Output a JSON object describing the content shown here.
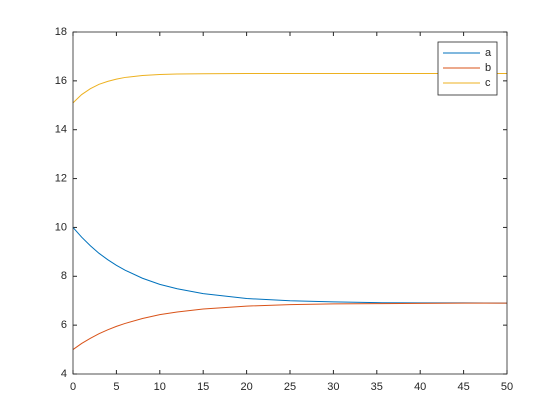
{
  "chart_data": {
    "type": "line",
    "x": [
      0,
      1,
      2,
      3,
      4,
      5,
      6,
      8,
      10,
      12,
      15,
      20,
      25,
      30,
      35,
      40,
      45,
      50
    ],
    "series": [
      {
        "name": "a",
        "color": "#0072bd",
        "values": [
          10,
          9.6,
          9.25,
          8.94,
          8.68,
          8.45,
          8.25,
          7.92,
          7.67,
          7.49,
          7.29,
          7.09,
          7.0,
          6.95,
          6.92,
          6.91,
          6.91,
          6.9
        ]
      },
      {
        "name": "b",
        "color": "#d95319",
        "values": [
          5,
          5.25,
          5.46,
          5.65,
          5.81,
          5.95,
          6.07,
          6.27,
          6.43,
          6.54,
          6.66,
          6.78,
          6.84,
          6.87,
          6.88,
          6.89,
          6.9,
          6.9
        ]
      },
      {
        "name": "c",
        "color": "#edb120",
        "values": [
          15.1,
          15.44,
          15.68,
          15.86,
          15.98,
          16.07,
          16.14,
          16.22,
          16.26,
          16.28,
          16.29,
          16.3,
          16.3,
          16.3,
          16.3,
          16.3,
          16.3,
          16.3
        ]
      }
    ],
    "xlim": [
      0,
      50
    ],
    "xticks": [
      0,
      5,
      10,
      15,
      20,
      25,
      30,
      35,
      40,
      45,
      50
    ],
    "ylim": [
      4,
      18
    ],
    "yticks": [
      4,
      6,
      8,
      10,
      12,
      14,
      16,
      18
    ],
    "grid": false,
    "legend": "northeast"
  }
}
